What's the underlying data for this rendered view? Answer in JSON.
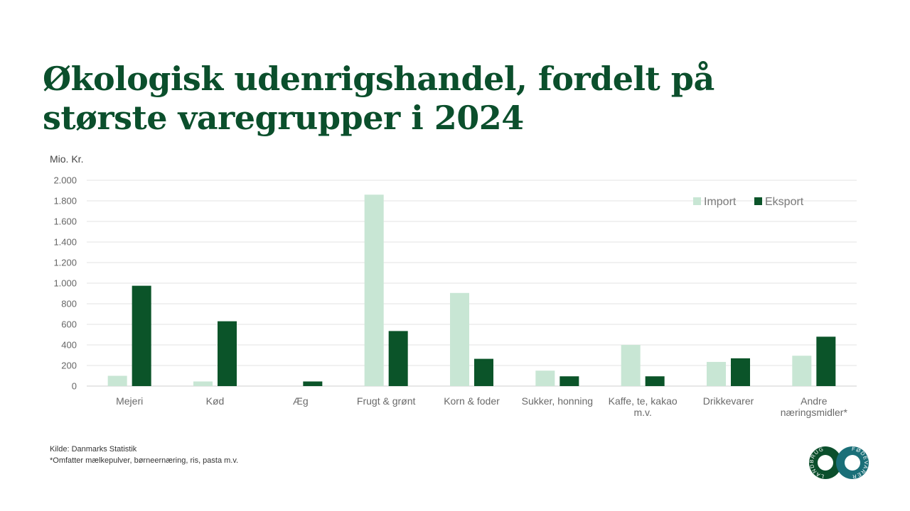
{
  "page": {
    "title_line1": "Økologisk udenrigshandel, fordelt på",
    "title_line2": "største varegrupper i 2024",
    "unit_label": "Mio. Kr.",
    "source": "Kilde: Danmarks Statistik",
    "footnote": "*Omfatter mælkepulver, børneernæring, ris, pasta m.v."
  },
  "logo": {
    "left_text": "LANDBRUG",
    "right_text": "FØDEVARER",
    "colors": {
      "left": "#0b4f2c",
      "right": "#1a6f78"
    }
  },
  "chart_data": {
    "type": "bar",
    "title": "Økologisk udenrigshandel, fordelt på største varegrupper i 2024",
    "ylabel": "Mio. Kr.",
    "xlabel": "",
    "ylim": [
      0,
      2000
    ],
    "yticks": [
      0,
      200,
      400,
      600,
      800,
      1000,
      1200,
      1400,
      1600,
      1800,
      2000
    ],
    "ytick_labels": [
      "0",
      "200",
      "400",
      "600",
      "800",
      "1.000",
      "1.200",
      "1.400",
      "1.600",
      "1.800",
      "2.000"
    ],
    "grid": true,
    "legend_position": "top-right",
    "categories": [
      [
        "Mejeri"
      ],
      [
        "Kød"
      ],
      [
        "Æg"
      ],
      [
        "Frugt & grønt"
      ],
      [
        "Korn & foder"
      ],
      [
        "Sukker, honning"
      ],
      [
        "Kaffe, te, kakao",
        "m.v."
      ],
      [
        "Drikkevarer"
      ],
      [
        "Andre",
        "næringsmidler*"
      ]
    ],
    "series": [
      {
        "name": "Import",
        "color": "#c8e6d4",
        "values": [
          100,
          45,
          0,
          1860,
          905,
          150,
          400,
          235,
          295
        ]
      },
      {
        "name": "Eksport",
        "color": "#0b5429",
        "values": [
          975,
          630,
          45,
          535,
          265,
          95,
          95,
          270,
          480
        ]
      }
    ]
  }
}
